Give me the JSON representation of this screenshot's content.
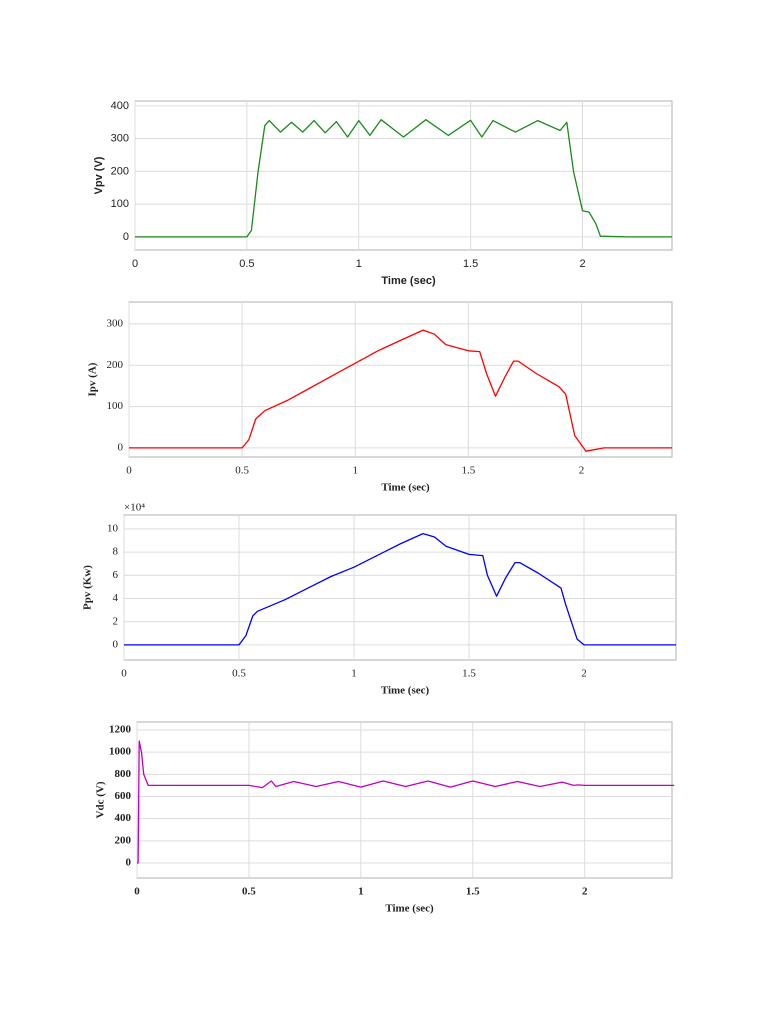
{
  "chart_data": [
    {
      "type": "line",
      "xlabel": "Time (sec)",
      "ylabel": "Vpv (V)",
      "xlim": [
        0,
        2.4
      ],
      "ylim": [
        -40,
        415
      ],
      "xticks": [
        0,
        0.5,
        1,
        1.5,
        2
      ],
      "yticks": [
        0,
        100,
        200,
        300,
        400
      ],
      "grid": true,
      "x": [
        0,
        0.5,
        0.52,
        0.55,
        0.58,
        0.6,
        0.65,
        0.7,
        0.75,
        0.8,
        0.85,
        0.9,
        0.95,
        1.0,
        1.05,
        1.1,
        1.2,
        1.3,
        1.4,
        1.5,
        1.55,
        1.6,
        1.7,
        1.8,
        1.9,
        1.93,
        1.96,
        2.0,
        2.03,
        2.06,
        2.08,
        2.2,
        2.4
      ],
      "series": [
        {
          "color": "#1a8a1a",
          "values": [
            0,
            0,
            20,
            200,
            340,
            355,
            320,
            350,
            320,
            355,
            318,
            352,
            305,
            355,
            310,
            358,
            305,
            358,
            310,
            356,
            305,
            355,
            320,
            355,
            325,
            350,
            200,
            80,
            75,
            40,
            2,
            0,
            0
          ]
        }
      ]
    },
    {
      "type": "line",
      "xlabel": "Time (sec)",
      "ylabel": "Ipv (A)",
      "xlim": [
        0,
        2.4
      ],
      "ylim": [
        -22,
        353
      ],
      "xticks": [
        0,
        0.5,
        1,
        1.5,
        2
      ],
      "yticks": [
        0,
        100,
        200,
        300
      ],
      "grid": true,
      "x": [
        0,
        0.5,
        0.53,
        0.56,
        0.6,
        0.7,
        0.8,
        0.9,
        1.0,
        1.1,
        1.2,
        1.3,
        1.35,
        1.4,
        1.5,
        1.55,
        1.58,
        1.62,
        1.66,
        1.7,
        1.72,
        1.8,
        1.9,
        1.93,
        1.97,
        2.02,
        2.1,
        2.4
      ],
      "series": [
        {
          "color": "#ff0000",
          "values": [
            0,
            0,
            20,
            70,
            90,
            115,
            145,
            175,
            205,
            235,
            260,
            285,
            275,
            250,
            235,
            233,
            180,
            125,
            170,
            210,
            210,
            180,
            148,
            130,
            30,
            -8,
            0,
            0
          ]
        }
      ]
    },
    {
      "type": "line",
      "xlabel": "Time (sec)",
      "ylabel": "Ppv (Kw)",
      "axis_multiplier": "×10⁴",
      "xlim": [
        0,
        2.4
      ],
      "ylim": [
        -1.3,
        11.2
      ],
      "xticks": [
        0,
        0.5,
        1,
        1.5,
        2
      ],
      "yticks": [
        0,
        2,
        4,
        6,
        8,
        10
      ],
      "grid": true,
      "x": [
        0,
        0.5,
        0.53,
        0.56,
        0.58,
        0.7,
        0.8,
        0.9,
        1.0,
        1.1,
        1.2,
        1.3,
        1.35,
        1.4,
        1.5,
        1.56,
        1.58,
        1.62,
        1.66,
        1.7,
        1.72,
        1.8,
        1.9,
        1.92,
        1.97,
        2.0,
        2.4
      ],
      "series": [
        {
          "color": "#0000ff",
          "values": [
            0,
            0,
            0.8,
            2.5,
            2.9,
            3.9,
            4.9,
            5.9,
            6.7,
            7.7,
            8.7,
            9.6,
            9.3,
            8.5,
            7.8,
            7.7,
            6,
            4.2,
            5.8,
            7.1,
            7.1,
            6.2,
            4.9,
            3.5,
            0.5,
            0,
            0
          ]
        }
      ]
    },
    {
      "type": "line",
      "xlabel": "Time (sec)",
      "ylabel": "Vdc (V)",
      "xlim": [
        0,
        2.39
      ],
      "ylim": [
        -135,
        1272
      ],
      "xticks": [
        0,
        0.5,
        1,
        1.5,
        2
      ],
      "yticks": [
        0,
        200,
        400,
        600,
        800,
        1000,
        1200
      ],
      "grid": true,
      "x": [
        0,
        0.005,
        0.01,
        0.02,
        0.03,
        0.05,
        0.5,
        0.56,
        0.6,
        0.62,
        0.7,
        0.8,
        0.9,
        1.0,
        1.1,
        1.2,
        1.3,
        1.4,
        1.5,
        1.6,
        1.7,
        1.8,
        1.9,
        1.95,
        1.97,
        2.0,
        2.4
      ],
      "series": [
        {
          "color": "#c000c0",
          "values": [
            0,
            0,
            1100,
            1000,
            800,
            700,
            700,
            680,
            740,
            690,
            735,
            690,
            735,
            685,
            740,
            690,
            740,
            685,
            740,
            690,
            735,
            690,
            730,
            700,
            705,
            700,
            700
          ]
        }
      ]
    }
  ]
}
